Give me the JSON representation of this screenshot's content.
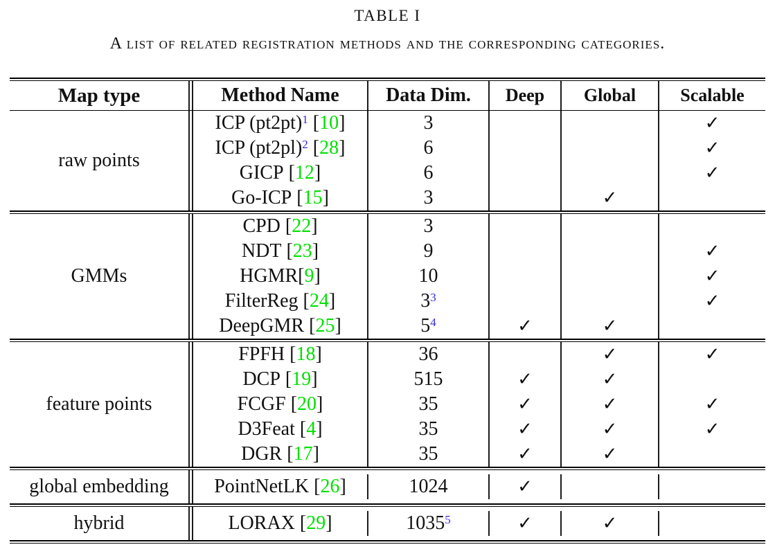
{
  "title": "TABLE I",
  "caption": "A list of related registration methods and the corresponding categories.",
  "colors": {
    "citation_green": "#00e000",
    "footnote_blue": "#3328e6"
  },
  "punct": {
    "close": "]"
  },
  "table": {
    "headers": {
      "map_type": "Map type",
      "method": "Method Name",
      "dim": "Data Dim.",
      "deep": "Deep",
      "global": "Global",
      "scalable": "Scalable"
    },
    "check_glyph": "✓",
    "sections": [
      {
        "map_type": "raw points",
        "rows": [
          {
            "name": "ICP (pt2pt)",
            "sup": "1",
            "cite_pre": " [",
            "cite": "10",
            "dim": "3",
            "dim_sup": "",
            "deep": "",
            "global": "",
            "scalable": "✓"
          },
          {
            "name": "ICP (pt2pl)",
            "sup": "2",
            "cite_pre": " [",
            "cite": "28",
            "dim": "6",
            "dim_sup": "",
            "deep": "",
            "global": "",
            "scalable": "✓"
          },
          {
            "name": "GICP",
            "sup": "",
            "cite_pre": " [",
            "cite": "12",
            "dim": "6",
            "dim_sup": "",
            "deep": "",
            "global": "",
            "scalable": "✓"
          },
          {
            "name": "Go-ICP",
            "sup": "",
            "cite_pre": " [",
            "cite": "15",
            "dim": "3",
            "dim_sup": "",
            "deep": "",
            "global": "✓",
            "scalable": ""
          }
        ]
      },
      {
        "map_type": "GMMs",
        "rows": [
          {
            "name": "CPD",
            "sup": "",
            "cite_pre": " [",
            "cite": "22",
            "dim": "3",
            "dim_sup": "",
            "deep": "",
            "global": "",
            "scalable": ""
          },
          {
            "name": "NDT",
            "sup": "",
            "cite_pre": " [",
            "cite": "23",
            "dim": "9",
            "dim_sup": "",
            "deep": "",
            "global": "",
            "scalable": "✓"
          },
          {
            "name": "HGMR",
            "sup": "",
            "cite_pre": "[",
            "cite": "9",
            "dim": "10",
            "dim_sup": "",
            "deep": "",
            "global": "",
            "scalable": "✓"
          },
          {
            "name": "FilterReg",
            "sup": "",
            "cite_pre": " [",
            "cite": "24",
            "dim": "3",
            "dim_sup": "3",
            "deep": "",
            "global": "",
            "scalable": "✓"
          },
          {
            "name": "DeepGMR",
            "sup": "",
            "cite_pre": " [",
            "cite": "25",
            "dim": "5",
            "dim_sup": "4",
            "deep": "✓",
            "global": "✓",
            "scalable": ""
          }
        ]
      },
      {
        "map_type": "feature points",
        "rows": [
          {
            "name": "FPFH",
            "sup": "",
            "cite_pre": " [",
            "cite": "18",
            "dim": "36",
            "dim_sup": "",
            "deep": "",
            "global": "✓",
            "scalable": "✓"
          },
          {
            "name": "DCP",
            "sup": "",
            "cite_pre": " [",
            "cite": "19",
            "dim": "515",
            "dim_sup": "",
            "deep": "✓",
            "global": "✓",
            "scalable": ""
          },
          {
            "name": "FCGF",
            "sup": "",
            "cite_pre": " [",
            "cite": "20",
            "dim": "35",
            "dim_sup": "",
            "deep": "✓",
            "global": "✓",
            "scalable": "✓"
          },
          {
            "name": "D3Feat",
            "sup": "",
            "cite_pre": " [",
            "cite": "4",
            "dim": "35",
            "dim_sup": "",
            "deep": "✓",
            "global": "✓",
            "scalable": "✓"
          },
          {
            "name": "DGR",
            "sup": "",
            "cite_pre": " [",
            "cite": "17",
            "dim": "35",
            "dim_sup": "",
            "deep": "✓",
            "global": "✓",
            "scalable": ""
          }
        ]
      },
      {
        "map_type": "global embedding",
        "rows": [
          {
            "name": "PointNetLK",
            "sup": "",
            "cite_pre": " [",
            "cite": "26",
            "dim": "1024",
            "dim_sup": "",
            "deep": "✓",
            "global": "",
            "scalable": ""
          }
        ]
      },
      {
        "map_type": "hybrid",
        "rows": [
          {
            "name": "LORAX",
            "sup": "",
            "cite_pre": " [",
            "cite": "29",
            "dim": "1035",
            "dim_sup": "5",
            "deep": "✓",
            "global": "✓",
            "scalable": ""
          }
        ]
      }
    ]
  }
}
